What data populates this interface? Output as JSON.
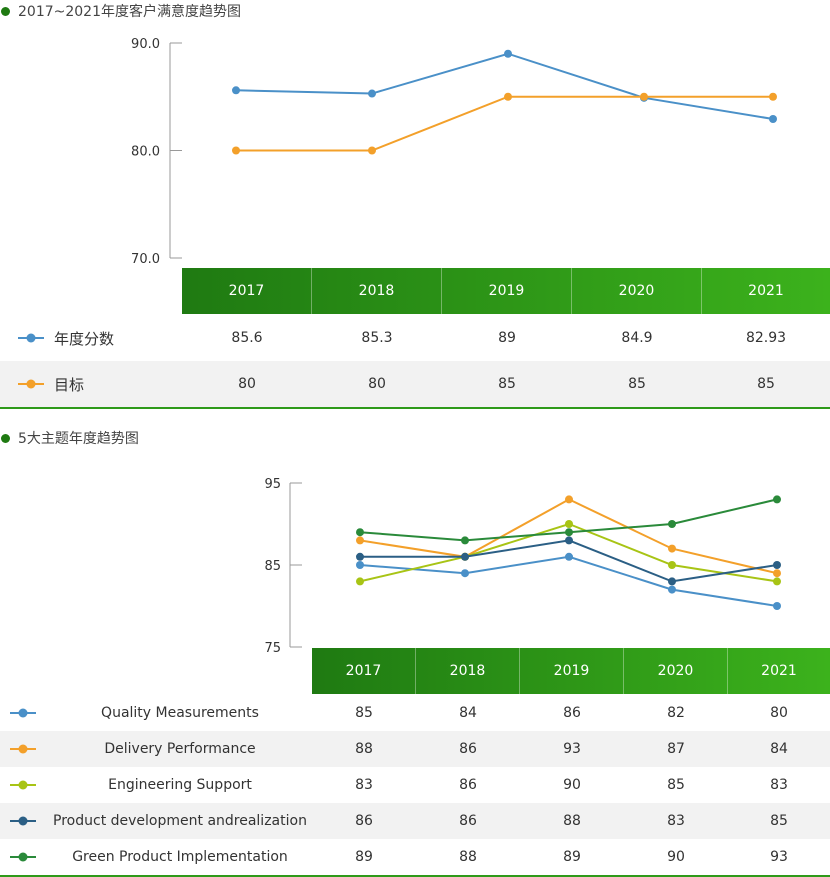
{
  "section1": {
    "title": "2017~2021年度客户满意度趋势图"
  },
  "section2": {
    "title": "5大主题年度趋势图"
  },
  "colors": {
    "green_dark": "#1f7a12",
    "green_light": "#3cb21c",
    "blue": "#4a90c8",
    "orange": "#f3a02a",
    "lime": "#a8c415",
    "navy": "#2b5f85",
    "green": "#2a8a3a"
  },
  "chart_data": [
    {
      "type": "line",
      "title": "2017~2021年度客户满意度趋势图",
      "categories": [
        "2017",
        "2018",
        "2019",
        "2020",
        "2021"
      ],
      "yticks": [
        "90.0",
        "80.0",
        "70.0"
      ],
      "ylim": [
        70,
        90
      ],
      "series": [
        {
          "name": "年度分数",
          "color": "#4a90c8",
          "values": [
            85.6,
            85.3,
            89,
            84.9,
            82.93
          ],
          "labels": [
            "85.6",
            "85.3",
            "89",
            "84.9",
            "82.93"
          ]
        },
        {
          "name": "目标",
          "color": "#f3a02a",
          "values": [
            80,
            80,
            85,
            85,
            85
          ],
          "labels": [
            "80",
            "80",
            "85",
            "85",
            "85"
          ]
        }
      ]
    },
    {
      "type": "line",
      "title": "5大主题年度趋势图",
      "categories": [
        "2017",
        "2018",
        "2019",
        "2020",
        "2021"
      ],
      "yticks": [
        "95",
        "85",
        "75"
      ],
      "ylim": [
        75,
        95
      ],
      "series": [
        {
          "name": "Quality Measurements",
          "color": "#4a90c8",
          "values": [
            85,
            84,
            86,
            82,
            80
          ],
          "labels": [
            "85",
            "84",
            "86",
            "82",
            "80"
          ]
        },
        {
          "name": "Delivery Performance",
          "color": "#f3a02a",
          "values": [
            88,
            86,
            93,
            87,
            84
          ],
          "labels": [
            "88",
            "86",
            "93",
            "87",
            "84"
          ]
        },
        {
          "name": "Engineering Support",
          "color": "#a8c415",
          "values": [
            83,
            86,
            90,
            85,
            83
          ],
          "labels": [
            "83",
            "86",
            "90",
            "85",
            "83"
          ]
        },
        {
          "name": "Product development andrealization",
          "color": "#2b5f85",
          "values": [
            86,
            86,
            88,
            83,
            85
          ],
          "labels": [
            "86",
            "86",
            "88",
            "83",
            "85"
          ]
        },
        {
          "name": "Green Product Implementation",
          "color": "#2a8a3a",
          "values": [
            89,
            88,
            89,
            90,
            93
          ],
          "labels": [
            "89",
            "88",
            "89",
            "90",
            "93"
          ]
        }
      ]
    }
  ]
}
